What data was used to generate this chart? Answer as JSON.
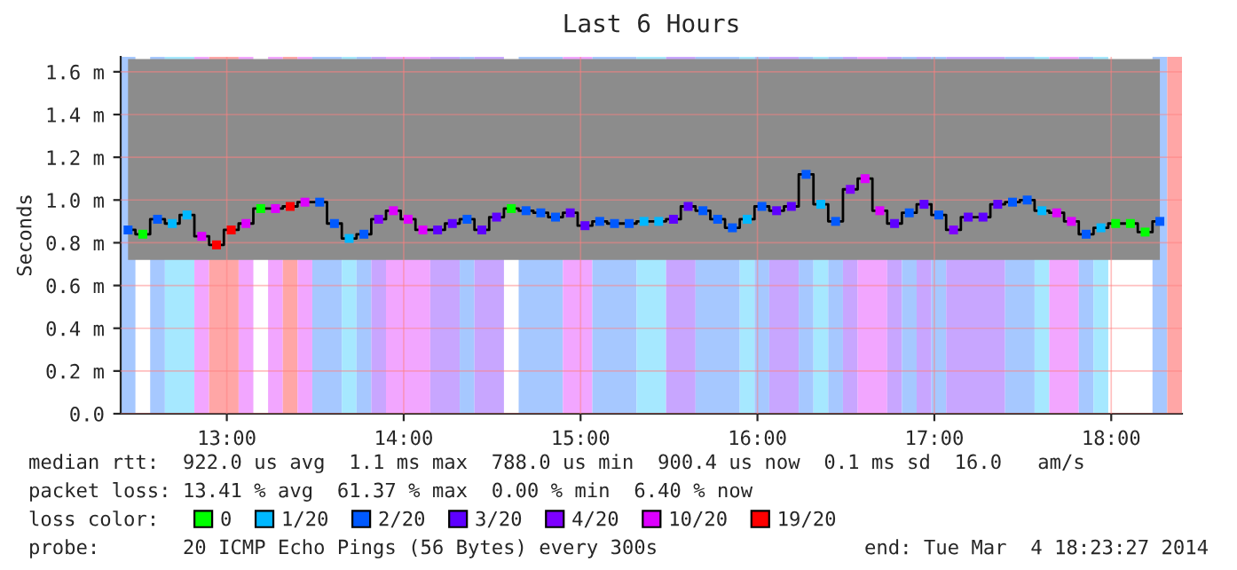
{
  "chart_data": {
    "type": "step",
    "title": "Last 6 Hours",
    "ylabel": "Seconds",
    "legend_title": "loss color:",
    "legend": "bottom",
    "grid": true,
    "xlim": [
      12.4,
      18.4
    ],
    "xticks": [
      {
        "value": 13,
        "label": "13:00"
      },
      {
        "value": 14,
        "label": "14:00"
      },
      {
        "value": 15,
        "label": "15:00"
      },
      {
        "value": 16,
        "label": "16:00"
      },
      {
        "value": 17,
        "label": "17:00"
      },
      {
        "value": 18,
        "label": "18:00"
      }
    ],
    "ylim": [
      0,
      1.67
    ],
    "yticks": [
      {
        "value": 0,
        "label": "0.0"
      },
      {
        "value": 0.2,
        "label": "0.2 m"
      },
      {
        "value": 0.4,
        "label": "0.4 m"
      },
      {
        "value": 0.6,
        "label": "0.6 m"
      },
      {
        "value": 0.8,
        "label": "0.8 m"
      },
      {
        "value": 1.0,
        "label": "1.0 m"
      },
      {
        "value": 1.2,
        "label": "1.2 m"
      },
      {
        "value": 1.4,
        "label": "1.4 m"
      },
      {
        "value": 1.6,
        "label": "1.6 m"
      }
    ],
    "series": [
      {
        "color": "#000000",
        "x": [
          12.4417,
          12.525,
          12.6083,
          12.6917,
          12.775,
          12.8583,
          12.9417,
          13.025,
          13.1083,
          13.1917,
          13.275,
          13.3583,
          13.4417,
          13.525,
          13.6083,
          13.6917,
          13.775,
          13.8583,
          13.9417,
          14.025,
          14.1083,
          14.1917,
          14.275,
          14.3583,
          14.4417,
          14.525,
          14.6083,
          14.6917,
          14.775,
          14.8583,
          14.9417,
          15.025,
          15.1083,
          15.1917,
          15.275,
          15.3583,
          15.4417,
          15.525,
          15.6083,
          15.6917,
          15.775,
          15.8583,
          15.9417,
          16.025,
          16.1083,
          16.1917,
          16.275,
          16.3583,
          16.4417,
          16.525,
          16.6083,
          16.6917,
          16.775,
          16.8583,
          16.9417,
          17.025,
          17.1083,
          17.1917,
          17.275,
          17.3583,
          17.4417,
          17.525,
          17.6083,
          17.6917,
          17.775,
          17.8583,
          17.9417,
          18.025,
          18.1083,
          18.1917,
          18.275
        ],
        "values": [
          0.86,
          0.84,
          0.91,
          0.89,
          0.93,
          0.83,
          0.79,
          0.86,
          0.89,
          0.96,
          0.96,
          0.97,
          0.99,
          0.99,
          0.89,
          0.82,
          0.84,
          0.91,
          0.95,
          0.91,
          0.86,
          0.86,
          0.89,
          0.91,
          0.86,
          0.92,
          0.96,
          0.95,
          0.94,
          0.92,
          0.94,
          0.88,
          0.9,
          0.89,
          0.89,
          0.9,
          0.9,
          0.91,
          0.97,
          0.95,
          0.91,
          0.87,
          0.91,
          0.97,
          0.95,
          0.97,
          1.12,
          0.98,
          0.9,
          1.05,
          1.1,
          0.95,
          0.89,
          0.94,
          0.98,
          0.93,
          0.86,
          0.92,
          0.92,
          0.98,
          0.99,
          1.0,
          0.95,
          0.94,
          0.9,
          0.84,
          0.87,
          0.89,
          0.89,
          0.85,
          0.9
        ],
        "lower": [
          0.72,
          0.72,
          0.72,
          0.72,
          0.72,
          0.72,
          0.72,
          0.72,
          0.72,
          0.72,
          0.72,
          0.72,
          0.72,
          0.72,
          0.72,
          0.72,
          0.72,
          0.72,
          0.72,
          0.72,
          0.72,
          0.72,
          0.72,
          0.72,
          0.72,
          0.72,
          0.72,
          0.72,
          0.72,
          0.72,
          0.72,
          0.72,
          0.72,
          0.72,
          0.72,
          0.72,
          0.72,
          0.72,
          0.72,
          0.72,
          0.72,
          0.72,
          0.72,
          0.72,
          0.72,
          0.72,
          0.72,
          0.72,
          0.72,
          0.72,
          0.72,
          0.72,
          0.72,
          0.72,
          0.72,
          0.72,
          0.72,
          0.72,
          0.72,
          0.72,
          0.72,
          0.72,
          0.72,
          0.72,
          0.72,
          0.72,
          0.72,
          0.72,
          0.72,
          0.72,
          0.72
        ],
        "upper": [
          1.66,
          1.66,
          1.66,
          1.66,
          1.66,
          1.66,
          1.66,
          1.66,
          1.66,
          1.66,
          1.66,
          1.66,
          1.66,
          1.66,
          1.66,
          1.66,
          1.66,
          1.66,
          1.66,
          1.66,
          1.66,
          1.66,
          1.66,
          1.66,
          1.66,
          1.66,
          1.66,
          1.66,
          1.66,
          1.66,
          1.66,
          1.66,
          1.66,
          1.66,
          1.66,
          1.66,
          1.66,
          1.66,
          1.66,
          1.66,
          1.66,
          1.66,
          1.66,
          1.66,
          1.66,
          1.66,
          1.66,
          1.66,
          1.66,
          1.66,
          1.66,
          1.66,
          1.66,
          1.66,
          1.66,
          1.66,
          1.66,
          1.66,
          1.66,
          1.66,
          1.66,
          1.66,
          1.66,
          1.66,
          1.66,
          1.66,
          1.66,
          1.66,
          1.66,
          1.66,
          1.66
        ]
      },
      {
        "type": "scatter",
        "marker": "square",
        "name": "0",
        "color": "#00ff00",
        "x": [
          12.525,
          13.1917,
          14.6083,
          18.025,
          18.1083,
          18.1917
        ],
        "values": [
          0.84,
          0.96,
          0.96,
          0.89,
          0.89,
          0.85
        ]
      },
      {
        "type": "scatter",
        "marker": "square",
        "name": "1/20",
        "color": "#00b8ff",
        "x": [
          12.6917,
          12.775,
          13.6917,
          15.3583,
          15.4417,
          15.9417,
          16.3583,
          17.6083,
          17.9417
        ],
        "values": [
          0.89,
          0.93,
          0.82,
          0.9,
          0.9,
          0.91,
          0.98,
          0.95,
          0.87
        ]
      },
      {
        "type": "scatter",
        "marker": "square",
        "name": "2/20",
        "color": "#0059ff",
        "x": [
          12.4417,
          12.6083,
          13.525,
          13.6083,
          13.775,
          14.3583,
          14.6917,
          14.775,
          14.8583,
          15.1083,
          15.1917,
          15.275,
          15.6917,
          15.775,
          15.8583,
          16.025,
          16.275,
          16.4417,
          16.8583,
          17.025,
          17.4417,
          17.525,
          17.8583,
          18.275
        ],
        "values": [
          0.86,
          0.91,
          0.99,
          0.89,
          0.84,
          0.91,
          0.95,
          0.94,
          0.92,
          0.9,
          0.89,
          0.89,
          0.95,
          0.91,
          0.87,
          0.97,
          1.12,
          0.9,
          0.94,
          0.93,
          0.99,
          1.0,
          0.84,
          0.9
        ]
      },
      {
        "type": "scatter",
        "marker": "square",
        "name": "3/20",
        "color": "#5e00ff",
        "x": [
          14.1917,
          14.275,
          14.4417,
          14.525,
          14.9417,
          15.025,
          15.525,
          15.6083,
          16.1083,
          16.1917,
          16.775,
          16.9417,
          17.1917,
          17.275,
          17.3583
        ],
        "values": [
          0.86,
          0.89,
          0.86,
          0.92,
          0.94,
          0.88,
          0.91,
          0.97,
          0.95,
          0.97,
          0.89,
          0.98,
          0.92,
          0.92,
          0.98
        ]
      },
      {
        "type": "scatter",
        "marker": "square",
        "name": "4/20",
        "color": "#7e00ff",
        "x": [
          13.8583,
          16.525,
          17.1083
        ],
        "values": [
          0.91,
          1.05,
          0.86
        ]
      },
      {
        "type": "scatter",
        "marker": "square",
        "name": "10/20",
        "color": "#dd00ff",
        "x": [
          12.8583,
          13.1083,
          13.275,
          13.4417,
          13.9417,
          14.025,
          14.1083,
          16.6083,
          16.6917,
          17.6917,
          17.775
        ],
        "values": [
          0.83,
          0.89,
          0.96,
          0.99,
          0.95,
          0.91,
          0.86,
          1.1,
          0.95,
          0.94,
          0.9
        ]
      },
      {
        "type": "scatter",
        "marker": "square",
        "name": "19/20",
        "color": "#ff0000",
        "x": [
          12.9417,
          13.025,
          13.3583
        ],
        "values": [
          0.79,
          0.86,
          0.97
        ]
      }
    ],
    "bands": [
      {
        "axis": "x",
        "from": 12.4,
        "to": 12.4833,
        "color": "#a6c8ff"
      },
      {
        "axis": "x",
        "from": 12.5667,
        "to": 12.65,
        "color": "#a6c8ff"
      },
      {
        "axis": "x",
        "from": 12.65,
        "to": 12.8167,
        "color": "#a6e8ff"
      },
      {
        "axis": "x",
        "from": 12.8167,
        "to": 12.9,
        "color": "#f2a6ff"
      },
      {
        "axis": "x",
        "from": 12.9,
        "to": 13.0667,
        "color": "#ffa6a6"
      },
      {
        "axis": "x",
        "from": 13.0667,
        "to": 13.15,
        "color": "#f2a6ff"
      },
      {
        "axis": "x",
        "from": 13.2333,
        "to": 13.3167,
        "color": "#f2a6ff"
      },
      {
        "axis": "x",
        "from": 13.3167,
        "to": 13.4,
        "color": "#ffa6a6"
      },
      {
        "axis": "x",
        "from": 13.4,
        "to": 13.4833,
        "color": "#f2a6ff"
      },
      {
        "axis": "x",
        "from": 13.4833,
        "to": 13.65,
        "color": "#a6c8ff"
      },
      {
        "axis": "x",
        "from": 13.65,
        "to": 13.7333,
        "color": "#a6e8ff"
      },
      {
        "axis": "x",
        "from": 13.7333,
        "to": 13.8167,
        "color": "#a6c8ff"
      },
      {
        "axis": "x",
        "from": 13.8167,
        "to": 13.9,
        "color": "#c8a6ff"
      },
      {
        "axis": "x",
        "from": 13.9,
        "to": 14.15,
        "color": "#f2a6ff"
      },
      {
        "axis": "x",
        "from": 14.15,
        "to": 14.3167,
        "color": "#c8a6ff"
      },
      {
        "axis": "x",
        "from": 14.3167,
        "to": 14.4,
        "color": "#a6c8ff"
      },
      {
        "axis": "x",
        "from": 14.4,
        "to": 14.5667,
        "color": "#c8a6ff"
      },
      {
        "axis": "x",
        "from": 14.65,
        "to": 14.9,
        "color": "#a6c8ff"
      },
      {
        "axis": "x",
        "from": 14.9,
        "to": 15.0667,
        "color": "#f2a6ff"
      },
      {
        "axis": "x",
        "from": 15.0667,
        "to": 15.3167,
        "color": "#a6c8ff"
      },
      {
        "axis": "x",
        "from": 15.3167,
        "to": 15.4833,
        "color": "#a6e8ff"
      },
      {
        "axis": "x",
        "from": 15.4833,
        "to": 15.65,
        "color": "#c8a6ff"
      },
      {
        "axis": "x",
        "from": 15.65,
        "to": 15.9,
        "color": "#a6c8ff"
      },
      {
        "axis": "x",
        "from": 15.9,
        "to": 15.9833,
        "color": "#a6e8ff"
      },
      {
        "axis": "x",
        "from": 15.9833,
        "to": 16.0667,
        "color": "#a6c8ff"
      },
      {
        "axis": "x",
        "from": 16.0667,
        "to": 16.2333,
        "color": "#c8a6ff"
      },
      {
        "axis": "x",
        "from": 16.2333,
        "to": 16.3167,
        "color": "#a6c8ff"
      },
      {
        "axis": "x",
        "from": 16.3167,
        "to": 16.4,
        "color": "#a6e8ff"
      },
      {
        "axis": "x",
        "from": 16.4,
        "to": 16.4833,
        "color": "#a6c8ff"
      },
      {
        "axis": "x",
        "from": 16.4833,
        "to": 16.5667,
        "color": "#c8a6ff"
      },
      {
        "axis": "x",
        "from": 16.5667,
        "to": 16.7333,
        "color": "#f2a6ff"
      },
      {
        "axis": "x",
        "from": 16.7333,
        "to": 16.8167,
        "color": "#c8a6ff"
      },
      {
        "axis": "x",
        "from": 16.8167,
        "to": 16.9,
        "color": "#a6c8ff"
      },
      {
        "axis": "x",
        "from": 16.9,
        "to": 16.9833,
        "color": "#c8a6ff"
      },
      {
        "axis": "x",
        "from": 16.9833,
        "to": 17.0667,
        "color": "#a6c8ff"
      },
      {
        "axis": "x",
        "from": 17.0667,
        "to": 17.4,
        "color": "#c8a6ff"
      },
      {
        "axis": "x",
        "from": 17.4,
        "to": 17.5667,
        "color": "#a6c8ff"
      },
      {
        "axis": "x",
        "from": 17.5667,
        "to": 17.65,
        "color": "#a6e8ff"
      },
      {
        "axis": "x",
        "from": 17.65,
        "to": 17.8167,
        "color": "#f2a6ff"
      },
      {
        "axis": "x",
        "from": 17.8167,
        "to": 17.9,
        "color": "#a6c8ff"
      },
      {
        "axis": "x",
        "from": 17.9,
        "to": 17.9833,
        "color": "#a6e8ff"
      },
      {
        "axis": "x",
        "from": 18.2333,
        "to": 18.3167,
        "color": "#a6c8ff"
      },
      {
        "axis": "x",
        "from": 18.3167,
        "to": 18.4,
        "color": "#ffa6a6"
      }
    ],
    "annotations": [
      "median rtt:  922.0 us avg  1.1 ms max  788.0 us min  900.4 us now  0.1 ms sd  16.0   am/s",
      "packet loss: 13.41 % avg  61.37 % max  0.00 % min  6.40 % now",
      "probe:       20 ICMP Echo Pings (56 Bytes) every 300s",
      "end: Tue Mar  4 18:23:27 2014"
    ]
  }
}
